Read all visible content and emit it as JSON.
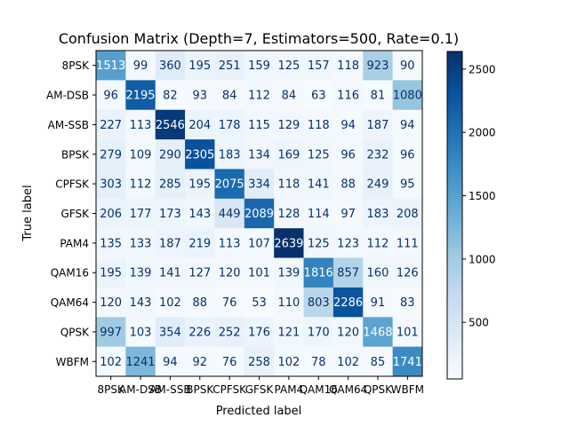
{
  "chart_data": {
    "type": "heatmap",
    "title": "Confusion Matrix (Depth=7, Estimators=500, Rate=0.1)",
    "xlabel": "Predicted label",
    "ylabel": "True label",
    "labels": [
      "8PSK",
      "AM-DSB",
      "AM-SSB",
      "BPSK",
      "CPFSK",
      "GFSK",
      "PAM4",
      "QAM16",
      "QAM64",
      "QPSK",
      "WBFM"
    ],
    "matrix": [
      [
        1513,
        99,
        360,
        195,
        251,
        159,
        125,
        157,
        118,
        923,
        90
      ],
      [
        96,
        2195,
        82,
        93,
        84,
        112,
        84,
        63,
        116,
        81,
        1080
      ],
      [
        227,
        113,
        2546,
        204,
        178,
        115,
        129,
        118,
        94,
        187,
        94
      ],
      [
        279,
        109,
        290,
        2305,
        183,
        134,
        169,
        125,
        96,
        232,
        96
      ],
      [
        303,
        112,
        285,
        195,
        2075,
        334,
        118,
        141,
        88,
        249,
        95
      ],
      [
        206,
        177,
        173,
        143,
        449,
        2089,
        128,
        114,
        97,
        183,
        208
      ],
      [
        135,
        133,
        187,
        219,
        113,
        107,
        2639,
        125,
        123,
        112,
        111
      ],
      [
        195,
        139,
        141,
        127,
        120,
        101,
        139,
        1816,
        857,
        160,
        126
      ],
      [
        120,
        143,
        102,
        88,
        76,
        53,
        110,
        803,
        2286,
        91,
        83
      ],
      [
        997,
        103,
        354,
        226,
        252,
        176,
        121,
        170,
        120,
        1468,
        101
      ],
      [
        102,
        1241,
        94,
        92,
        76,
        258,
        102,
        78,
        102,
        85,
        1741
      ]
    ],
    "colormap": "Blues",
    "vmin": 53,
    "vmax": 2639,
    "colorbar_ticks": [
      500,
      1000,
      1500,
      2000,
      2500
    ]
  }
}
